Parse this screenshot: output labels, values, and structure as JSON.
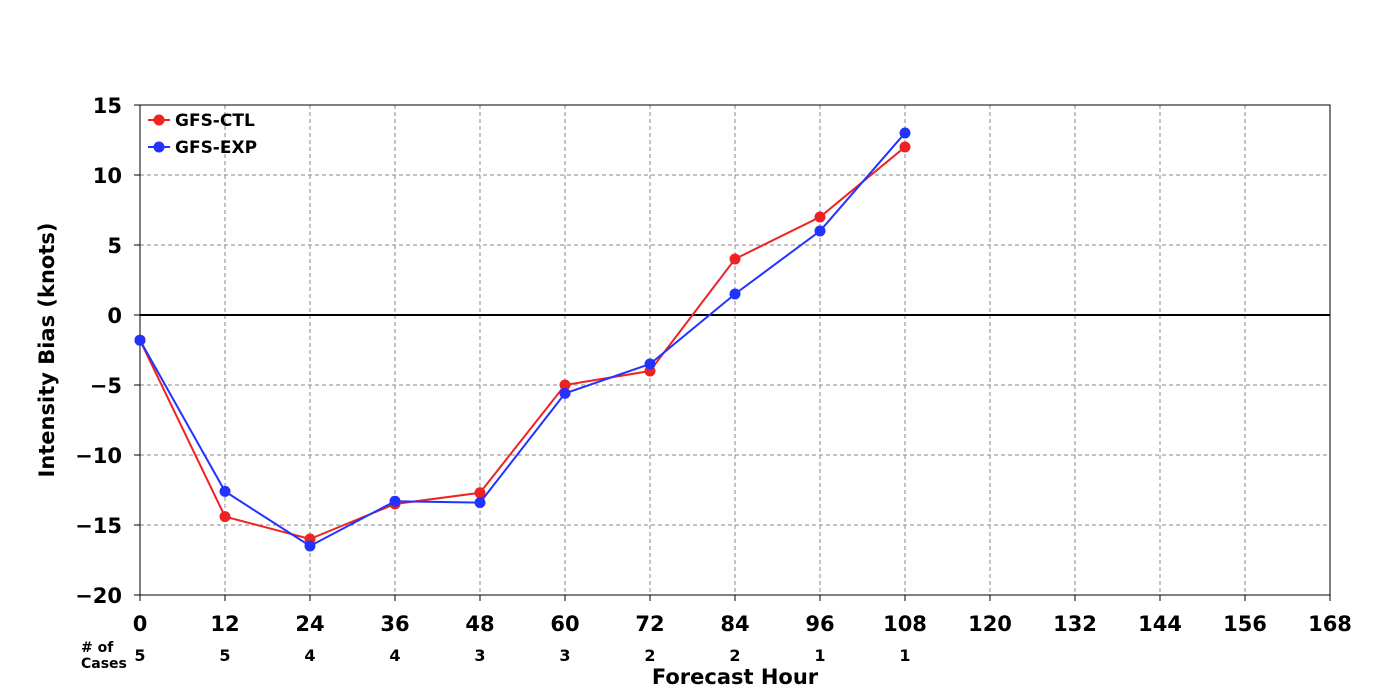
{
  "chart_data": {
    "type": "line",
    "xlabel": "Forecast Hour",
    "ylabel": "Intensity Bias (knots)",
    "xlim": [
      0,
      168
    ],
    "ylim": [
      -20,
      15
    ],
    "x_ticks": [
      0,
      12,
      24,
      36,
      48,
      60,
      72,
      84,
      96,
      108,
      120,
      132,
      144,
      156,
      168
    ],
    "y_ticks": [
      -20,
      -15,
      -10,
      -5,
      0,
      5,
      10,
      15
    ],
    "x_tick_labels": [
      "0",
      "12",
      "24",
      "36",
      "48",
      "60",
      "72",
      "84",
      "96",
      "108",
      "120",
      "132",
      "144",
      "156",
      "168"
    ],
    "y_tick_labels": [
      "−20",
      "−15",
      "−10",
      "−5",
      "0",
      "5",
      "10",
      "15"
    ],
    "grid": true,
    "grid_style": "dashed",
    "zero_line": true,
    "legend_position": "top-left",
    "x": [
      0,
      12,
      24,
      36,
      48,
      60,
      72,
      84,
      96,
      108
    ],
    "series": [
      {
        "name": "GFS-CTL",
        "color": "#ee2222",
        "values": [
          -1.8,
          -14.4,
          -16.0,
          -13.5,
          -12.7,
          -5.0,
          -4.0,
          4.0,
          7.0,
          12.0
        ]
      },
      {
        "name": "GFS-EXP",
        "color": "#2233ff",
        "values": [
          -1.8,
          -12.6,
          -16.5,
          -13.3,
          -13.4,
          -5.6,
          -3.5,
          1.5,
          6.0,
          13.0
        ]
      }
    ],
    "cases": {
      "label_line1": "# of",
      "label_line2": "Cases",
      "x": [
        0,
        12,
        24,
        36,
        48,
        60,
        72,
        84,
        96,
        108
      ],
      "values": [
        "5",
        "5",
        "4",
        "4",
        "3",
        "3",
        "2",
        "2",
        "1",
        "1"
      ]
    }
  }
}
